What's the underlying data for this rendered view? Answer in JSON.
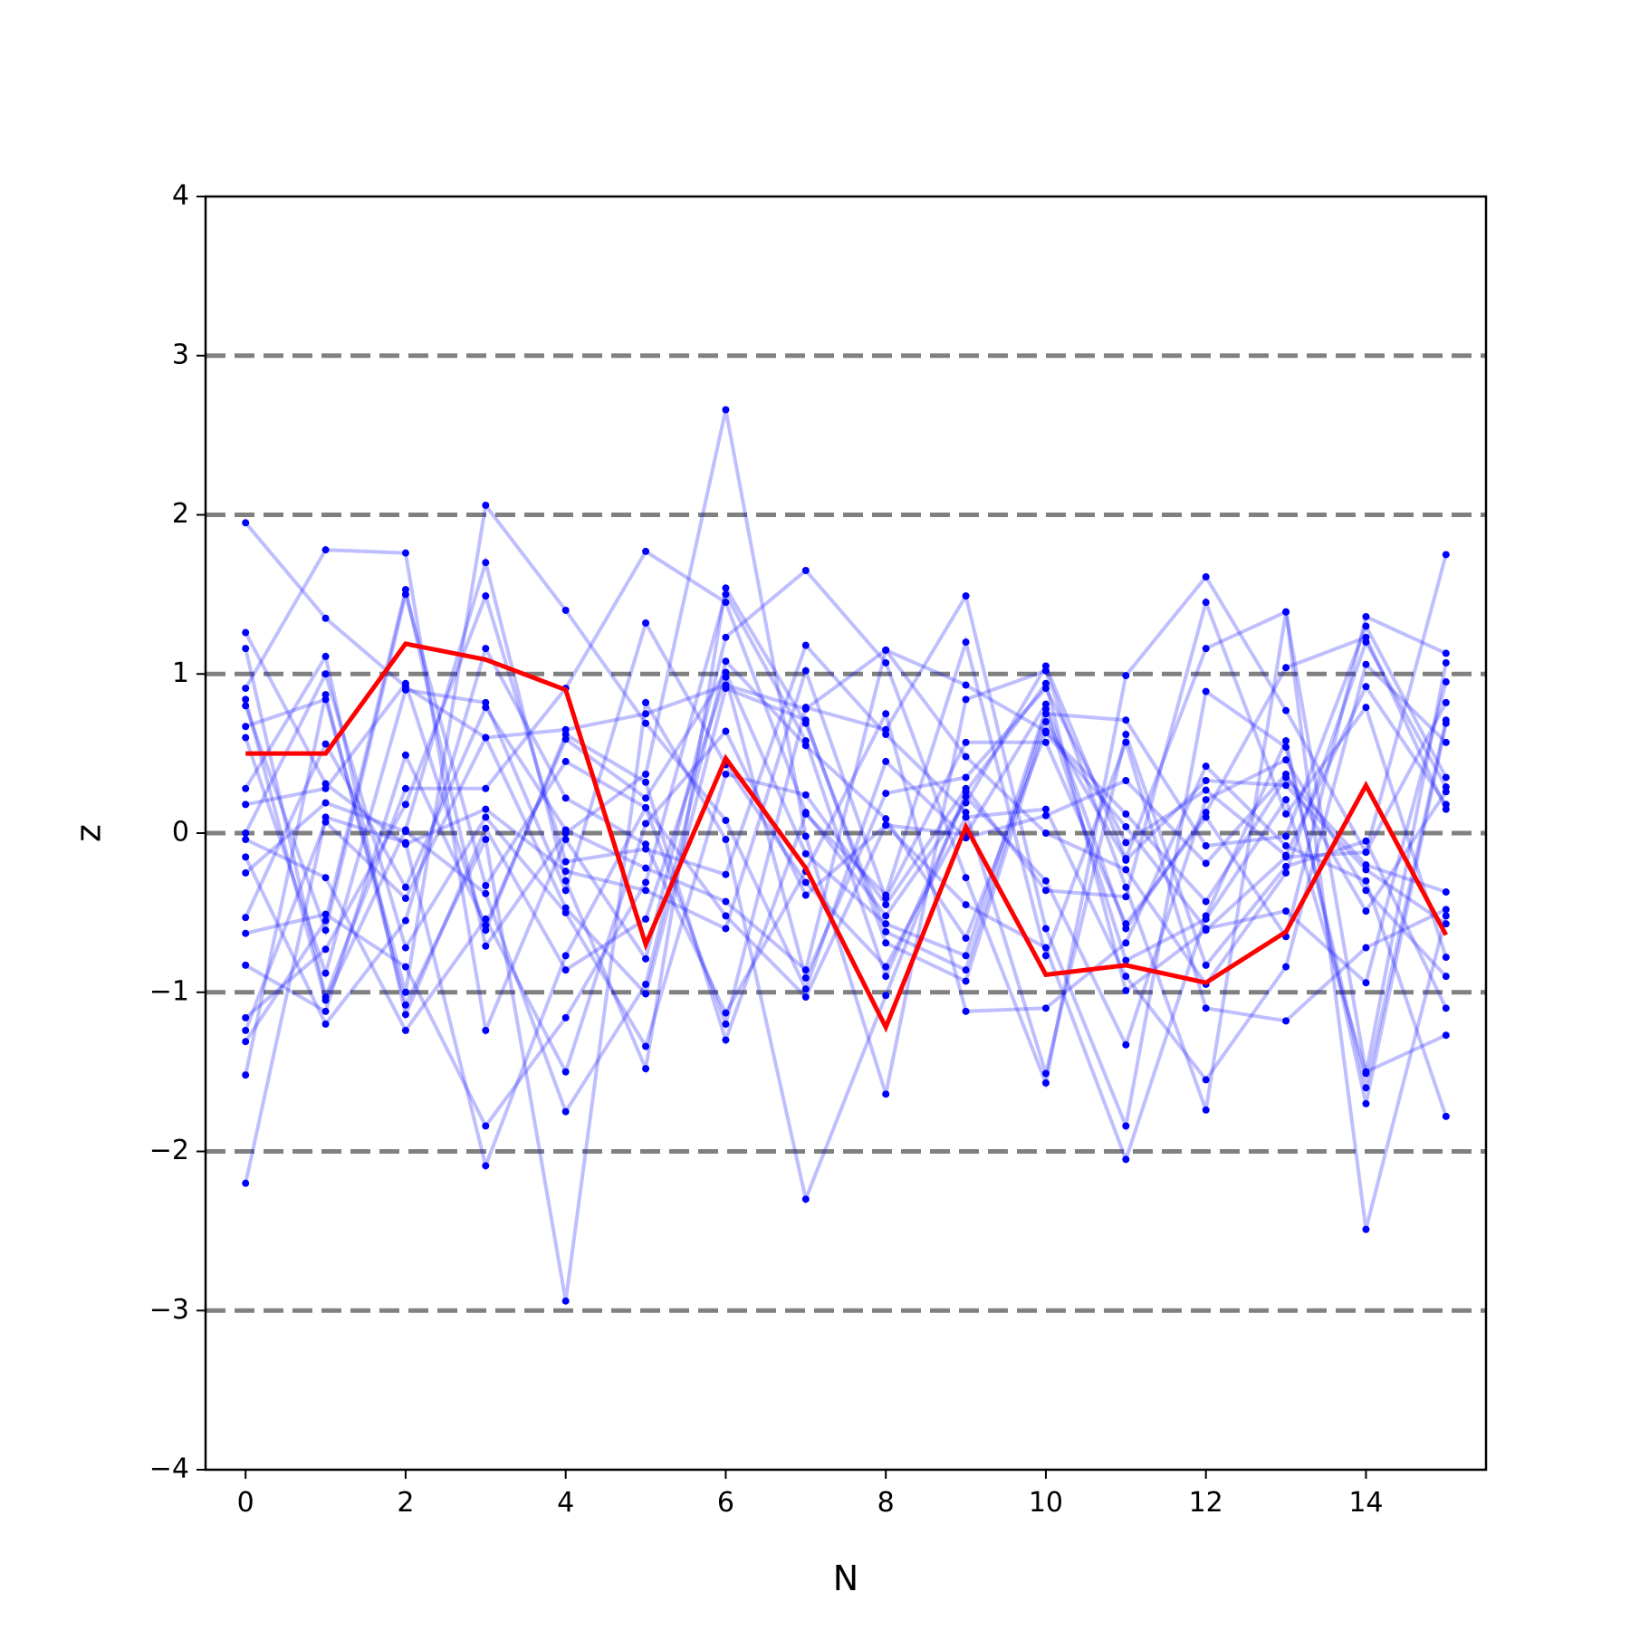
{
  "chart_data": {
    "type": "line",
    "xlabel": "N",
    "ylabel": "z",
    "xlim": [
      -0.5,
      15.5
    ],
    "ylim": [
      -4,
      4
    ],
    "x_ticks": [
      0,
      2,
      4,
      6,
      8,
      10,
      12,
      14
    ],
    "x_tick_labels": [
      "0",
      "2",
      "4",
      "6",
      "8",
      "10",
      "12",
      "14"
    ],
    "y_ticks": [
      -4,
      -3,
      -2,
      -1,
      0,
      1,
      2,
      3,
      4
    ],
    "y_tick_labels": [
      "−4",
      "−3",
      "−2",
      "−1",
      "0",
      "1",
      "2",
      "3",
      "4"
    ],
    "reference_lines": [
      -3,
      -2,
      -1,
      0,
      1,
      2,
      3
    ],
    "reference_line_color": "#808080",
    "background_series_color": "#0000ff",
    "highlight_color": "#ff0000",
    "x": [
      0,
      1,
      2,
      3,
      4,
      5,
      6,
      7,
      8,
      9,
      10,
      11,
      12,
      13,
      14,
      15
    ],
    "highlight": [
      0.5,
      0.5,
      1.19,
      1.09,
      0.9,
      -0.7,
      0.47,
      -0.22,
      -1.22,
      0.04,
      -0.89,
      -0.83,
      -0.94,
      -0.62,
      0.3,
      -0.64
    ],
    "background_series": [
      [
        1.95,
        1.35,
        0.92,
        0.6,
        0.65,
        0.75,
        0.93,
        0.78,
        1.15,
        0.93,
        0.64,
        0.12,
        -0.43,
        0.35,
        -0.2,
        -0.37
      ],
      [
        1.26,
        0.31,
        -0.07,
        0.15,
        -0.24,
        -0.36,
        -0.6,
        1.02,
        -0.41,
        0.57,
        0.57,
        -0.57,
        0.1,
        -0.65,
        1.36,
        1.13
      ],
      [
        1.16,
        -1.03,
        0.28,
        0.28,
        0.91,
        1.77,
        1.45,
        0.13,
        -0.52,
        0.19,
        1.05,
        -0.16,
        1.16,
        1.39,
        -1.5,
        -1.27
      ],
      [
        0.91,
        1.78,
        1.76,
        -1.24,
        -0.04,
        -0.79,
        1.23,
        1.65,
        1.07,
        -0.28,
        -1.57,
        0.99,
        1.61,
        0.77,
        -0.12,
        1.75
      ],
      [
        0.84,
        -1.05,
        0.02,
        1.7,
        -0.3,
        -1.48,
        1.54,
        0.69,
        -0.62,
        -0.86,
        0.75,
        0.71,
        -0.08,
        -0.02,
        1.3,
        0.35
      ],
      [
        0.8,
        -0.61,
        1.5,
        -0.33,
        0.45,
        0.16,
        -1.2,
        0.79,
        0.65,
        1.49,
        -0.6,
        -1.84,
        0.89,
        0.54,
        -1.6,
        0.71
      ],
      [
        0.67,
        0.84,
        -1.0,
        2.06,
        1.4,
        0.69,
        0.08,
        -0.98,
        0.45,
        -0.03,
        0.11,
        0.33,
        -0.19,
        0.37,
        -0.49,
        0.26
      ],
      [
        0.6,
        -0.88,
        0.9,
        0.82,
        -0.36,
        1.32,
        0.43,
        -0.31,
        -0.84,
        0.1,
        0.15,
        -0.9,
        -1.55,
        -0.84,
        1.06,
        0.57
      ],
      [
        0.28,
        1.11,
        -1.14,
        0.03,
        -0.86,
        -0.54,
        0.98,
        -0.91,
        0.25,
        0.35,
        0.91,
        -0.06,
        0.27,
        -0.14,
        0.92,
        0.18
      ],
      [
        0.18,
        0.28,
        0.94,
        -0.61,
        0.62,
        0.32,
        -1.3,
        0.12,
        -0.39,
        1.2,
        -0.77,
        0.57,
        -1.1,
        -1.18,
        -0.72,
        -0.48
      ],
      [
        0.0,
        1.0,
        -0.72,
        0.1,
        -0.5,
        -1.34,
        0.37,
        0.24,
        -0.45,
        0.28,
        -0.36,
        -0.4,
        1.45,
        0.12,
        0.79,
        -0.78
      ],
      [
        -0.04,
        -0.28,
        -1.24,
        -0.54,
        -1.5,
        0.06,
        0.64,
        -0.39,
        0.05,
        -0.01,
        0.81,
        -0.6,
        0.13,
        1.04,
        1.23,
        0.15
      ],
      [
        -0.15,
        -1.2,
        -0.55,
        1.16,
        0.22,
        -0.07,
        -1.13,
        -0.24,
        0.75,
        -1.12,
        -1.1,
        -0.69,
        0.42,
        -0.08,
        -0.3,
        -1.78
      ],
      [
        -0.25,
        0.19,
        0.01,
        -0.38,
        -1.75,
        -0.95,
        1.08,
        0.55,
        0.09,
        -0.66,
        0.63,
        0.04,
        -0.6,
        -0.49,
        -0.94,
        0.95
      ],
      [
        -0.53,
        0.56,
        -0.34,
        0.79,
        0.02,
        -0.22,
        -0.43,
        -0.86,
        1.15,
        0.48,
        0.0,
        -0.23,
        -0.95,
        -0.25,
        1.2,
        0.29
      ],
      [
        -0.63,
        -0.51,
        -0.84,
        -1.84,
        -1.16,
        -0.31,
        1.5,
        0.58,
        -0.9,
        0.23,
        -0.3,
        -1.33,
        0.21,
        0.46,
        -0.36,
        -0.9
      ],
      [
        -0.83,
        -1.12,
        0.49,
        -0.58,
        0.59,
        0.22,
        1.01,
        -0.13,
        -0.57,
        -0.77,
        0.78,
        -0.8,
        -0.54,
        0.21,
        -1.51,
        1.07
      ],
      [
        -1.16,
        -0.73,
        0.18,
        1.49,
        -0.18,
        -0.1,
        -0.26,
        1.18,
        0.62,
        0.13,
        -1.51,
        0.62,
        -0.83,
        -0.21,
        -0.05,
        -1.1
      ],
      [
        -1.24,
        0.07,
        -0.41,
        0.6,
        -0.47,
        -1.01,
        0.91,
        0.71,
        -0.69,
        -0.93,
        0.7,
        -0.17,
        0.33,
        0.3,
        -0.23,
        -0.57
      ],
      [
        -1.31,
        -0.55,
        1.53,
        -0.71,
        0.0,
        0.37,
        2.66,
        -0.02,
        -1.64,
        0.84,
        1.02,
        -0.34,
        -1.74,
        1.39,
        -2.49,
        -0.52
      ],
      [
        -1.52,
        0.87,
        -1.08,
        -0.04,
        -2.94,
        0.82,
        -0.04,
        -2.3,
        -1.02,
        0.26,
        0.94,
        -0.99,
        -0.61,
        -0.15,
        -0.12,
        0.82
      ],
      [
        -2.2,
        0.1,
        -0.06,
        -2.09,
        -0.77,
        0.16,
        -0.52,
        -1.03,
        0.05,
        -0.45,
        -0.72,
        -2.05,
        -0.52,
        0.58,
        -1.7,
        0.69
      ]
    ]
  }
}
